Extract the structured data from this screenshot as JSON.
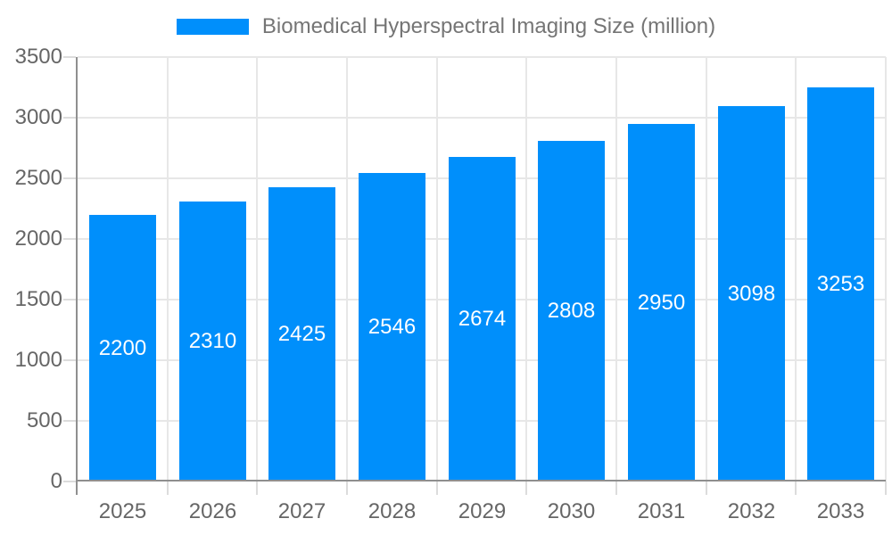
{
  "legend": {
    "label": "Biomedical Hyperspectral Imaging Size (million)"
  },
  "chart_data": {
    "type": "bar",
    "title": "Biomedical Hyperspectral Imaging Size (million)",
    "series_name": "Biomedical Hyperspectral Imaging Size (million)",
    "categories": [
      "2025",
      "2026",
      "2027",
      "2028",
      "2029",
      "2030",
      "2031",
      "2032",
      "2033"
    ],
    "values": [
      2200,
      2310,
      2425,
      2546,
      2674,
      2808,
      2950,
      3098,
      3253
    ],
    "value_labels": [
      "2200",
      "2310",
      "2425",
      "2546",
      "2674",
      "2808",
      "2950",
      "3098",
      "3253"
    ],
    "xlabel": "",
    "ylabel": "",
    "ylim": [
      0,
      3500
    ],
    "ytick_step": 500,
    "ytick_labels": [
      "0",
      "500",
      "1000",
      "1500",
      "2000",
      "2500",
      "3000",
      "3500"
    ],
    "grid": true,
    "legend_position": "top",
    "colors": {
      "bar": "#008FFB",
      "value_label": "#FFFFFF",
      "axis_text": "#666666",
      "title_text": "#757575",
      "gridline": "#E7E7E7",
      "tick": "#DCDCDC",
      "axis_line": "#8F8F8F"
    }
  }
}
